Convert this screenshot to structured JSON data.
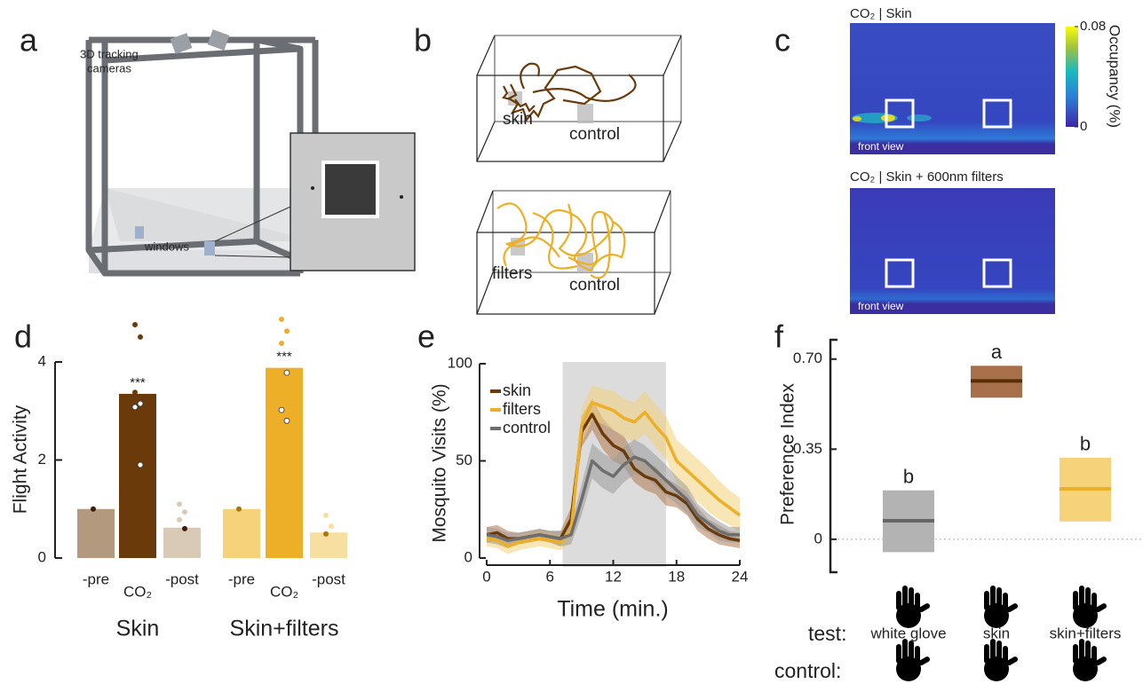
{
  "panel_letters": [
    "a",
    "b",
    "c",
    "d",
    "e",
    "f"
  ],
  "panel_a": {
    "camera_label": [
      "3D tracking",
      "cameras"
    ],
    "window_label": "windows"
  },
  "panel_b": {
    "top_labels": [
      "skin",
      "control"
    ],
    "bottom_labels": [
      "filters",
      "control"
    ]
  },
  "panel_c": {
    "titles": [
      "CO₂  |  Skin",
      "CO₂  |  Skin + 600nm filters"
    ],
    "view_label": "front view",
    "colorbar_label": "Occupancy (%)",
    "clim": [
      0,
      0.08
    ],
    "cticks": [
      0,
      0.08
    ]
  },
  "chart_data": [
    {
      "type": "bar",
      "ylabel": "Flight Activity",
      "categories": [
        "-pre",
        "CO₂",
        "-post",
        "-pre",
        "CO₂",
        "-post"
      ],
      "values": [
        1.0,
        3.35,
        0.62,
        1.0,
        3.88,
        0.52
      ],
      "colors": [
        "#b39a7e",
        "#6b3a0a",
        "#d9cab8",
        "#f6d27a",
        "#ecaf27",
        "#f7dfa1"
      ],
      "points": [
        [
          1.0
        ],
        [
          4.76,
          4.51,
          3.38,
          3.15,
          3.08,
          1.9
        ],
        [
          1.1,
          0.94,
          0.78,
          0.6
        ],
        [
          1.0
        ],
        [
          4.87,
          4.63,
          4.38,
          3.78,
          3.02,
          2.8
        ],
        [
          0.87,
          0.65,
          0.49
        ]
      ],
      "point_colors": [
        "#3b1e05",
        "#ffffff",
        "#3b1e05",
        "#a8780c",
        "#ffffff",
        "#a8780c"
      ],
      "value_annotations": [
        null,
        "***",
        null,
        null,
        "***",
        null
      ],
      "group_labels": [
        "Skin",
        "Skin+filters"
      ],
      "ylim": [
        0,
        4
      ],
      "yticks": [
        0,
        2,
        4
      ]
    },
    {
      "type": "line",
      "xlabel": "Time (min.)",
      "ylabel": "Mosquito Visits (%)",
      "x": [
        0,
        1,
        2,
        3,
        4,
        5,
        6,
        7,
        8,
        9,
        10,
        11,
        12,
        13,
        14,
        15,
        16,
        17,
        18,
        19,
        20,
        21,
        22,
        23,
        24
      ],
      "series": [
        {
          "name": "skin",
          "color": "#6b3a0a",
          "band_color": "#b07a50",
          "values": [
            12,
            13,
            10,
            10,
            11,
            12,
            11,
            10,
            20,
            65,
            74,
            64,
            58,
            55,
            46,
            42,
            40,
            34,
            32,
            28,
            20,
            15,
            12,
            10,
            9
          ],
          "errors": [
            4,
            4,
            4,
            3,
            3,
            3,
            3,
            4,
            6,
            8,
            8,
            8,
            8,
            8,
            7,
            7,
            7,
            7,
            6,
            6,
            6,
            5,
            5,
            4,
            4
          ]
        },
        {
          "name": "filters",
          "color": "#ecaf27",
          "band_color": "#f4d27a",
          "values": [
            10,
            9,
            6,
            8,
            9,
            10,
            9,
            8,
            14,
            68,
            80,
            78,
            76,
            72,
            70,
            75,
            68,
            62,
            50,
            45,
            40,
            35,
            30,
            26,
            22
          ],
          "errors": [
            4,
            4,
            4,
            4,
            4,
            4,
            4,
            4,
            6,
            9,
            9,
            9,
            10,
            10,
            10,
            11,
            11,
            11,
            11,
            11,
            11,
            11,
            10,
            9,
            9
          ]
        },
        {
          "name": "control",
          "color": "#6e6e6e",
          "band_color": "#9a9a9a",
          "values": [
            12,
            11,
            9,
            10,
            11,
            12,
            11,
            10,
            12,
            30,
            50,
            45,
            42,
            48,
            52,
            50,
            45,
            40,
            35,
            30,
            22,
            18,
            14,
            12,
            12
          ],
          "errors": [
            4,
            4,
            4,
            3,
            3,
            3,
            3,
            4,
            5,
            8,
            9,
            9,
            9,
            9,
            9,
            8,
            8,
            8,
            7,
            7,
            6,
            5,
            5,
            4,
            4
          ]
        }
      ],
      "shade": [
        7.2,
        17
      ],
      "legend": "upper left",
      "xlim": [
        0,
        24
      ],
      "xticks": [
        0,
        6,
        12,
        18,
        24
      ],
      "ylim": [
        0,
        100
      ],
      "yticks": [
        0,
        50,
        100
      ]
    },
    {
      "type": "box",
      "ylabel": "Preference Index",
      "categories": [
        "white glove",
        "skin",
        "skin+filters"
      ],
      "values": [
        0.072,
        0.615,
        0.196
      ],
      "lower": [
        -0.05,
        0.55,
        0.069
      ],
      "upper": [
        0.19,
        0.674,
        0.317
      ],
      "colors": [
        "#b3b3b3",
        "#a8704a",
        "#f6d27a"
      ],
      "line_colors": [
        "#666666",
        "#5a2e05",
        "#ecaf27"
      ],
      "letters": [
        "b",
        "a",
        "b"
      ],
      "row_labels": [
        "test:",
        "control:"
      ],
      "ylim": [
        -0.128,
        0.775
      ],
      "yticks": [
        0,
        0.35,
        {
          "value": 0.7,
          "label": "0.70"
        }
      ]
    }
  ]
}
